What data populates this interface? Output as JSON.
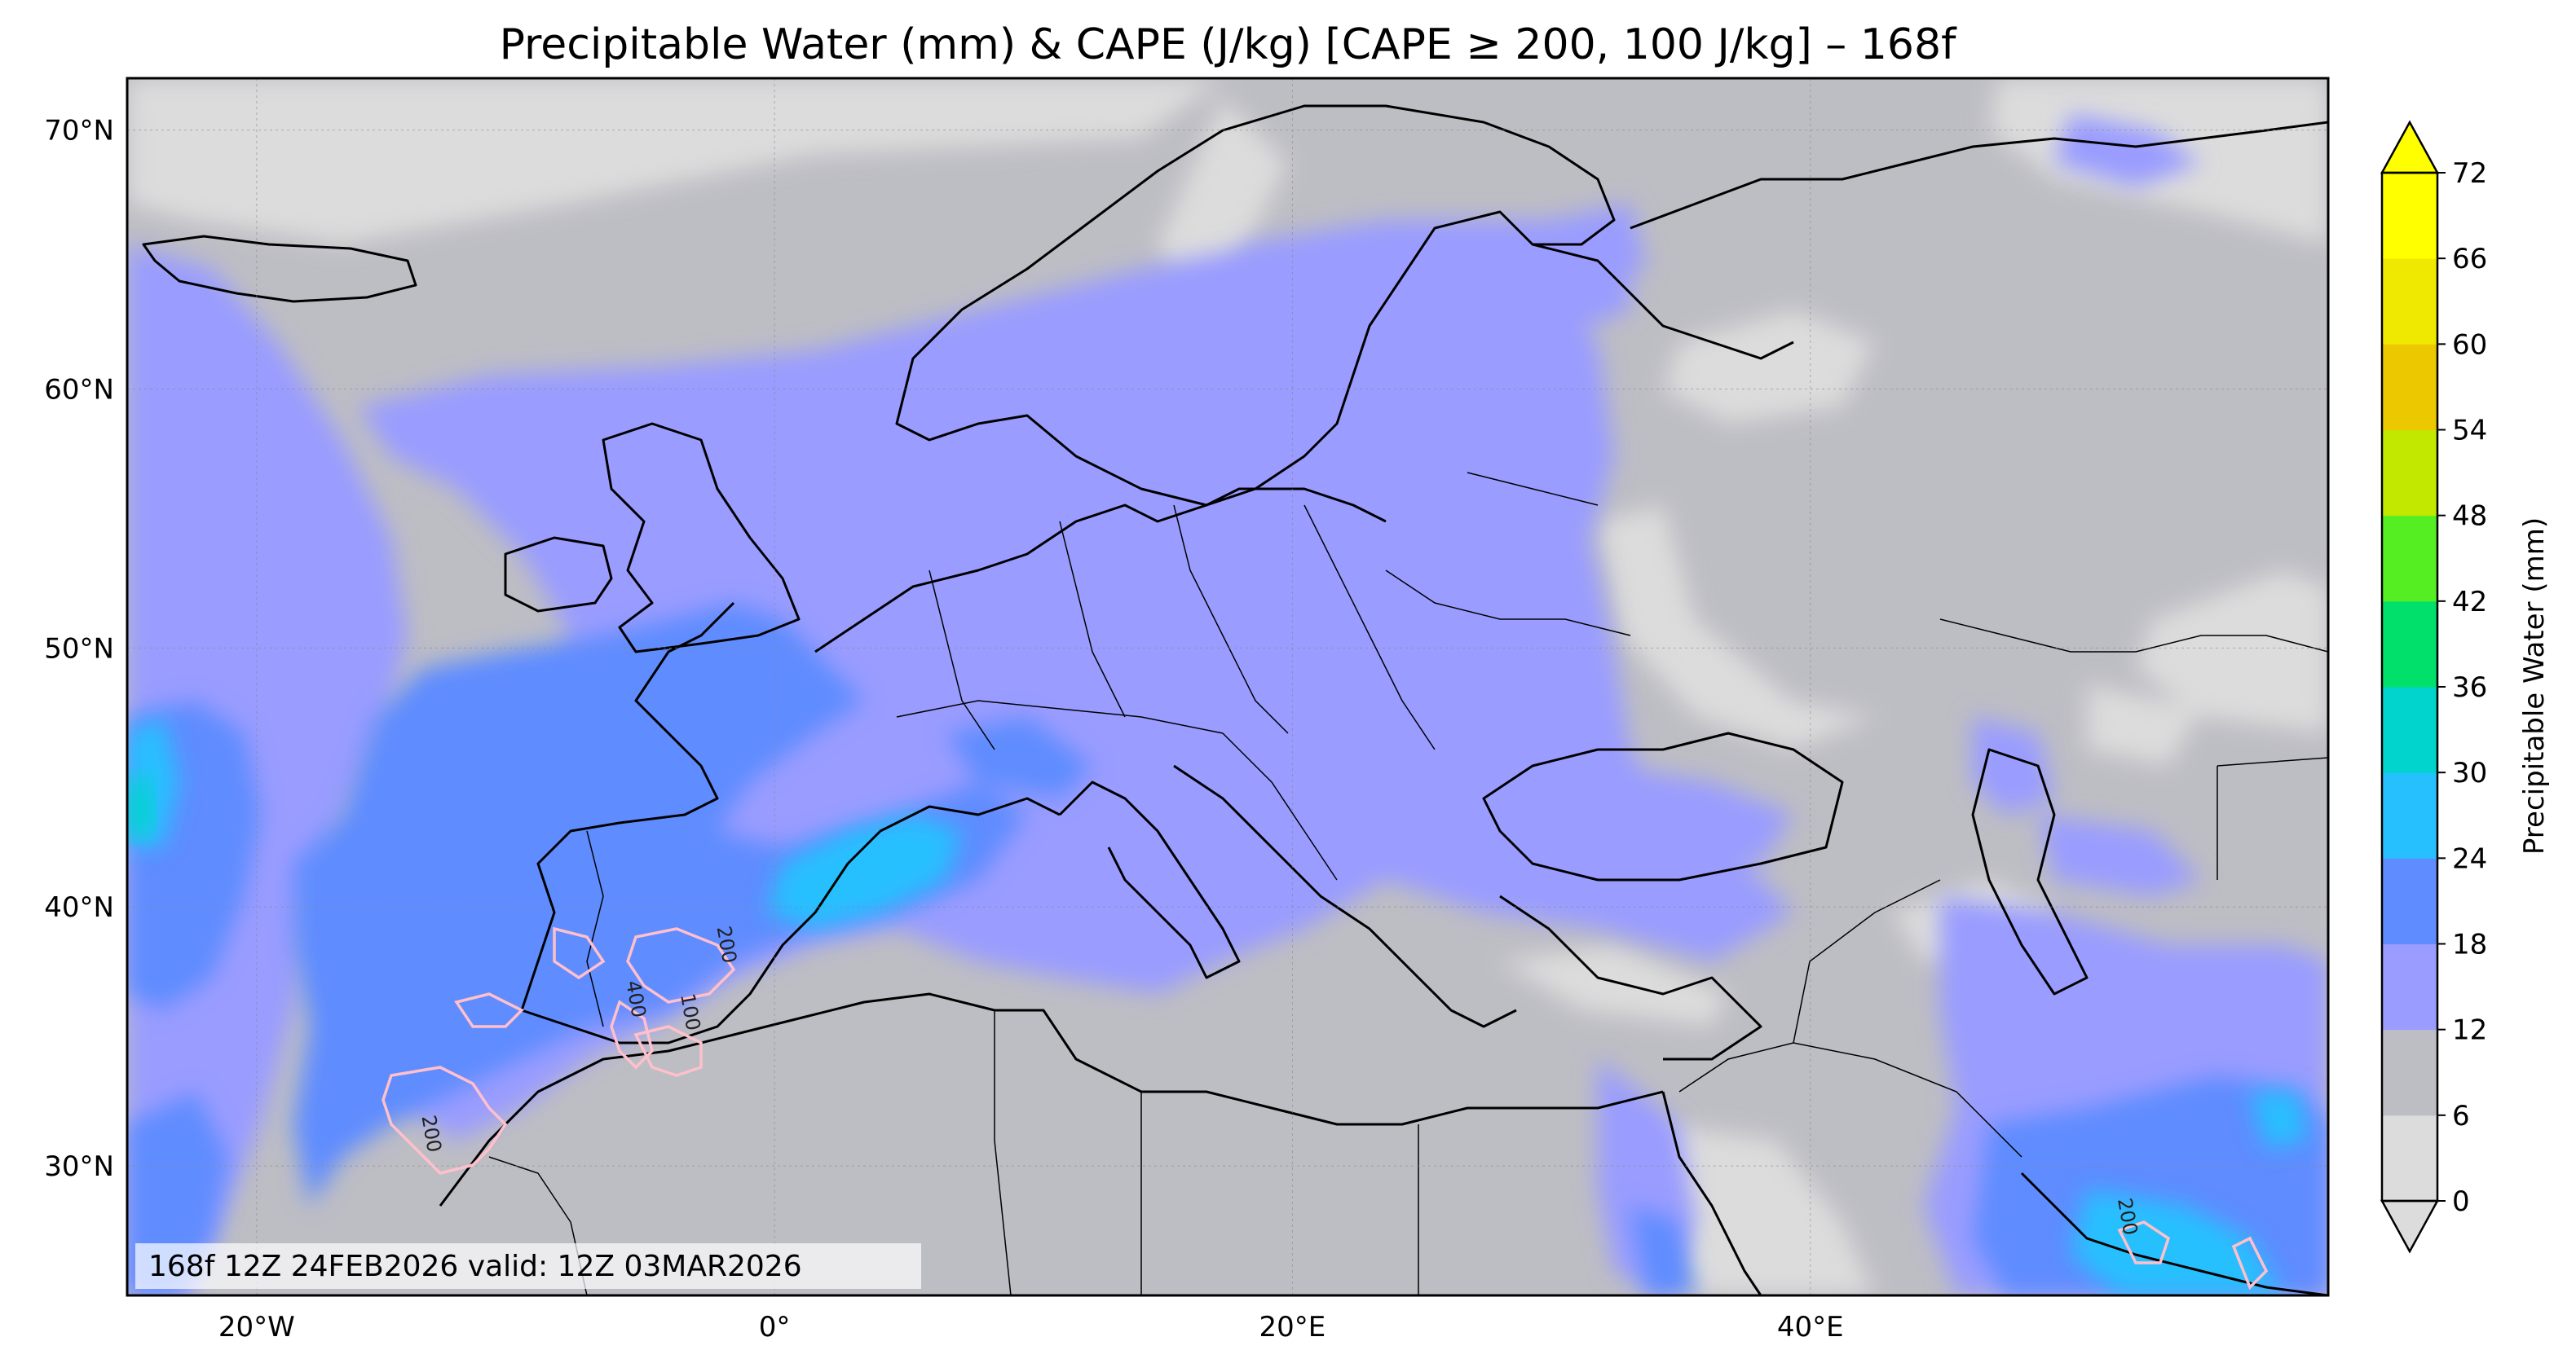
{
  "figure": {
    "title": "Precipitable Water (mm) & CAPE (J/kg) [CAPE ≥ 200, 100 J/kg] – 168f",
    "annotation": "168f 12Z 24FEB2026 valid: 12Z 03MAR2026"
  },
  "map": {
    "projection": "PlateCarree",
    "extent": {
      "lon_min": -25,
      "lon_max": 60,
      "lat_min": 25,
      "lat_max": 72
    },
    "gridlines": true,
    "lat_ticks": [
      {
        "value": 30,
        "label": "30°N"
      },
      {
        "value": 40,
        "label": "40°N"
      },
      {
        "value": 50,
        "label": "50°N"
      },
      {
        "value": 60,
        "label": "60°N"
      },
      {
        "value": 70,
        "label": "70°N"
      }
    ],
    "lon_ticks": [
      {
        "value": -20,
        "label": "20°W"
      },
      {
        "value": 0,
        "label": "0°"
      },
      {
        "value": 20,
        "label": "20°E"
      },
      {
        "value": 40,
        "label": "40°E"
      }
    ],
    "cape_contour_labels": [
      {
        "text": "200",
        "lon": -13.5,
        "lat": 31.2
      },
      {
        "text": "200",
        "lon": -2.1,
        "lat": 38.5
      },
      {
        "text": "400",
        "lon": -5.6,
        "lat": 36.4
      },
      {
        "text": "100",
        "lon": -3.5,
        "lat": 35.9
      },
      {
        "text": "200",
        "lon": 52.0,
        "lat": 28.0
      }
    ]
  },
  "colorbar": {
    "label": "Precipitable Water (mm)",
    "levels": [
      {
        "label": "0",
        "color": "#dcdcdc"
      },
      {
        "label": "6",
        "color": "#bdbdc4"
      },
      {
        "label": "12",
        "color": "#9a9cff"
      },
      {
        "label": "18",
        "color": "#5f8cff"
      },
      {
        "label": "24",
        "color": "#27c0ff"
      },
      {
        "label": "30",
        "color": "#00d4cc"
      },
      {
        "label": "36",
        "color": "#00e06a"
      },
      {
        "label": "42",
        "color": "#55ee22"
      },
      {
        "label": "48",
        "color": "#c2e800"
      },
      {
        "label": "54",
        "color": "#ebc800"
      },
      {
        "label": "60",
        "color": "#efe800"
      },
      {
        "label": "66",
        "color": "#ffff00"
      },
      {
        "label": "72",
        "color": ""
      }
    ],
    "extend": "both"
  }
}
